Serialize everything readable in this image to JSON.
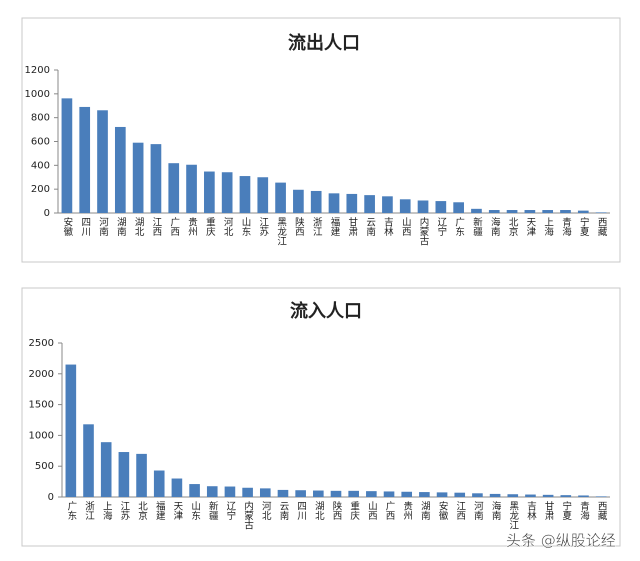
{
  "chart_data": [
    {
      "type": "bar",
      "title": "流出人口",
      "categories": [
        "安徽",
        "四川",
        "河南",
        "湖南",
        "湖北",
        "江西",
        "广西",
        "贵州",
        "重庆",
        "河北",
        "山东",
        "江苏",
        "黑龙江",
        "陕西",
        "浙江",
        "福建",
        "甘肃",
        "云南",
        "吉林",
        "山西",
        "内蒙古",
        "辽宁",
        "广东",
        "新疆",
        "海南",
        "北京",
        "天津",
        "上海",
        "青海",
        "宁夏",
        "西藏"
      ],
      "values": [
        962,
        890,
        862,
        722,
        590,
        578,
        418,
        405,
        348,
        342,
        310,
        300,
        255,
        195,
        185,
        165,
        160,
        150,
        140,
        115,
        105,
        100,
        90,
        35,
        25,
        25,
        25,
        25,
        25,
        20,
        5
      ],
      "color": "#4a7ebb",
      "ylim": [
        0,
        1200
      ],
      "yticks": [
        0,
        200,
        400,
        600,
        800,
        1000,
        1200
      ],
      "grid": false
    },
    {
      "type": "bar",
      "title": "流入人口",
      "categories": [
        "广东",
        "浙江",
        "上海",
        "江苏",
        "北京",
        "福建",
        "天津",
        "山东",
        "新疆",
        "辽宁",
        "内蒙古",
        "河北",
        "云南",
        "四川",
        "湖北",
        "陕西",
        "重庆",
        "山西",
        "广西",
        "贵州",
        "湖南",
        "安徽",
        "江西",
        "河南",
        "海南",
        "黑龙江",
        "吉林",
        "甘肃",
        "宁夏",
        "青海",
        "西藏"
      ],
      "values": [
        2150,
        1180,
        890,
        730,
        700,
        430,
        300,
        210,
        175,
        170,
        150,
        140,
        115,
        110,
        105,
        100,
        100,
        95,
        90,
        85,
        80,
        75,
        70,
        60,
        50,
        45,
        40,
        35,
        30,
        25,
        10
      ],
      "color": "#4a7ebb",
      "ylim": [
        0,
        2500
      ],
      "yticks": [
        0,
        500,
        1000,
        1500,
        2000,
        2500
      ],
      "grid": false
    }
  ],
  "watermark": "头条 @纵股论经"
}
